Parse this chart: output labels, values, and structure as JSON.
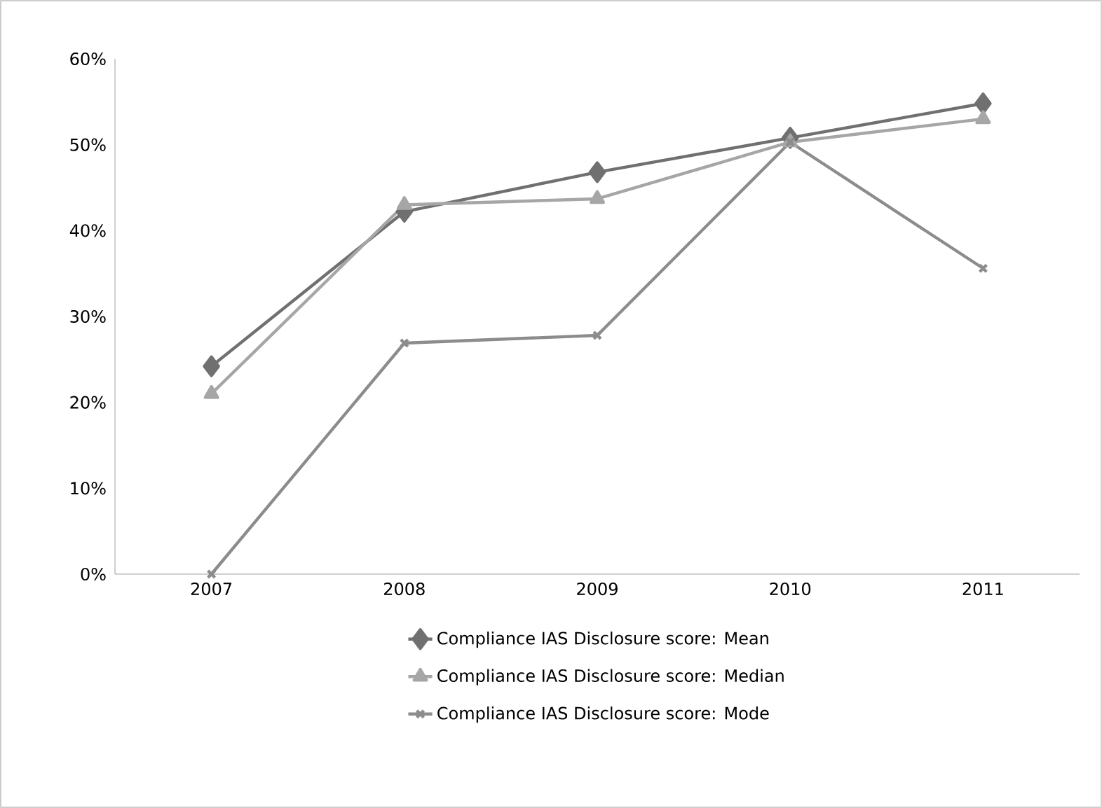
{
  "chart_data": {
    "type": "line",
    "categories": [
      "2007",
      "2008",
      "2009",
      "2010",
      "2011"
    ],
    "series": [
      {
        "name": "Compliance IAS Disclosure score: Mean",
        "color": "#707070",
        "marker": "diamond",
        "values": [
          24.2,
          42.2,
          46.8,
          50.8,
          54.8
        ]
      },
      {
        "name": "Compliance IAS Disclosure score: Median",
        "color": "#a6a6a6",
        "marker": "triangle",
        "values": [
          21.0,
          43.0,
          43.7,
          50.3,
          53.0
        ]
      },
      {
        "name": "Compliance IAS Disclosure score: Mode",
        "color": "#8c8c8c",
        "marker": "cross",
        "values": [
          0,
          26.9,
          27.8,
          50.3,
          35.6
        ]
      }
    ],
    "ylim": [
      0,
      60
    ],
    "yticks": [
      {
        "value": 0,
        "label": "0%"
      },
      {
        "value": 10,
        "label": "10%"
      },
      {
        "value": 20,
        "label": "20%"
      },
      {
        "value": 30,
        "label": "30%"
      },
      {
        "value": 40,
        "label": "40%"
      },
      {
        "value": 50,
        "label": "50%"
      },
      {
        "value": 60,
        "label": "60%"
      }
    ],
    "grid": false,
    "legend": "bottom",
    "line_style": "solid"
  }
}
